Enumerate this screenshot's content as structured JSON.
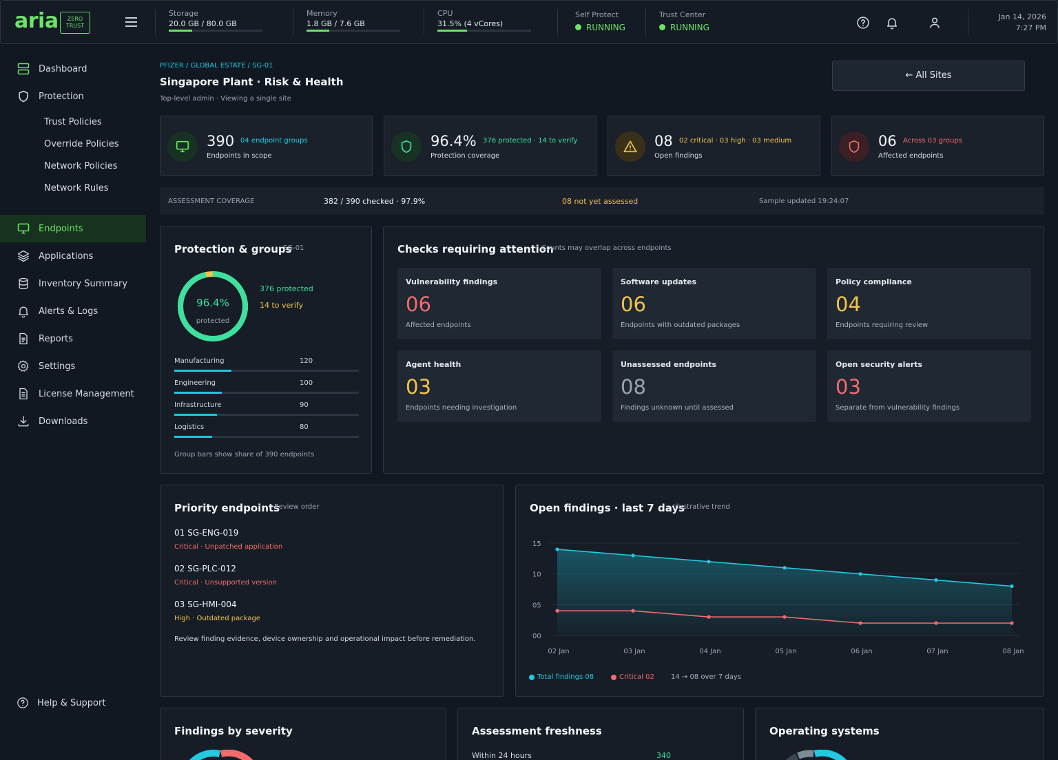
{
  "header": {
    "logo": "aria",
    "badge_line1": "ZERO",
    "badge_line2": "TRUST",
    "metrics": [
      {
        "label": "Storage",
        "value": "20.0 GB / 80.0 GB",
        "fraction": 0.25
      },
      {
        "label": "Memory",
        "value": "1.8 GB / 7.6 GB",
        "fraction": 0.24
      },
      {
        "label": "CPU",
        "value": "31.5% (4 vCores)",
        "fraction": 0.315
      }
    ],
    "services": [
      {
        "label": "Self Protect",
        "status": "RUNNING"
      },
      {
        "label": "Trust Center",
        "status": "RUNNING"
      }
    ],
    "date": "Jan 14, 2026",
    "time": "7:27 PM"
  },
  "sidebar": {
    "items": [
      {
        "label": "Dashboard",
        "icon": "server-icon"
      },
      {
        "label": "Protection",
        "icon": "shield-icon"
      },
      {
        "label": "Endpoints",
        "icon": "monitor-icon",
        "active": true
      },
      {
        "label": "Applications",
        "icon": "layers-icon"
      },
      {
        "label": "Inventory Summary",
        "icon": "database-icon"
      },
      {
        "label": "Alerts & Logs",
        "icon": "bell-icon"
      },
      {
        "label": "Reports",
        "icon": "document-icon"
      },
      {
        "label": "Settings",
        "icon": "gear-icon"
      },
      {
        "label": "License Management",
        "icon": "license-icon"
      },
      {
        "label": "Downloads",
        "icon": "download-icon"
      }
    ],
    "protection_sub": [
      "Trust Policies",
      "Override Policies",
      "Network Policies",
      "Network Rules"
    ],
    "help": "Help & Support"
  },
  "page": {
    "breadcrumb": "PFIZER / GLOBAL ESTATE / SG-01",
    "title": "Singapore Plant · Risk & Health",
    "subtitle": "Top-level admin · Viewing a single site",
    "all_sites": "← All Sites"
  },
  "kpis": [
    {
      "value": "390",
      "tag": "04 endpoint groups",
      "label": "Endpoints in scope",
      "color": "#22c9e0"
    },
    {
      "value": "96.4%",
      "tag": "376 protected · 14 to verify",
      "label": "Protection coverage",
      "color": "#3ee0a0"
    },
    {
      "value": "08",
      "tag": "02 critical · 03 high · 03 medium",
      "label": "Open findings",
      "color": "#f3c34a"
    },
    {
      "value": "06",
      "tag": "Across 03 groups",
      "label": "Affected endpoints",
      "color": "#f46b6b"
    }
  ],
  "coverage": {
    "label": "ASSESSMENT COVERAGE",
    "checked": "382 / 390 checked · 97.9%",
    "pending": "08 not yet assessed",
    "updated": "Sample updated 19:24:07"
  },
  "protection": {
    "title": "Protection & groups",
    "site": "SG-01",
    "percent": "96.4%",
    "percent_value": 96.4,
    "caption": "protected",
    "protected": "376 protected",
    "verify": "14 to verify",
    "groups": [
      {
        "name": "Manufacturing",
        "value": "120",
        "share": 0.308
      },
      {
        "name": "Engineering",
        "value": "100",
        "share": 0.256
      },
      {
        "name": "Infrastructure",
        "value": "90",
        "share": 0.231
      },
      {
        "name": "Logistics",
        "value": "80",
        "share": 0.205
      }
    ],
    "footnote": "Group bars show share of 390 endpoints"
  },
  "checks": {
    "title": "Checks requiring attention",
    "subtitle": "Counts may overlap across endpoints",
    "items": [
      {
        "label": "Vulnerability findings",
        "value": "06",
        "sub": "Affected endpoints",
        "color": "#f46b6b"
      },
      {
        "label": "Software updates",
        "value": "06",
        "sub": "Endpoints with outdated packages",
        "color": "#f3c34a"
      },
      {
        "label": "Policy compliance",
        "value": "04",
        "sub": "Endpoints requiring review",
        "color": "#f3c34a"
      },
      {
        "label": "Agent health",
        "value": "03",
        "sub": "Endpoints needing investigation",
        "color": "#f3c34a"
      },
      {
        "label": "Unassessed endpoints",
        "value": "08",
        "sub": "Findings unknown until assessed",
        "color": "#9aa5b1"
      },
      {
        "label": "Open security alerts",
        "value": "03",
        "sub": "Separate from vulnerability findings",
        "color": "#f46b6b"
      }
    ]
  },
  "priority": {
    "title": "Priority endpoints",
    "subtitle": "Review order",
    "items": [
      {
        "name": "01  SG-ENG-019",
        "detail": "Critical · Unpatched application",
        "color": "#f46b6b"
      },
      {
        "name": "02  SG-PLC-012",
        "detail": "Critical · Unsupported version",
        "color": "#f46b6b"
      },
      {
        "name": "03  SG-HMI-004",
        "detail": "High · Outdated package",
        "color": "#f3c34a"
      }
    ],
    "note": "Review finding evidence, device ownership and operational impact before remediation."
  },
  "trend": {
    "title": "Open findings · last 7 days",
    "subtitle": "Illustrative trend",
    "legend_total": "Total findings 08",
    "legend_critical": "Critical 02",
    "legend_note": "14 → 08 over 7 days"
  },
  "chart_data": {
    "type": "area",
    "x": [
      "02 Jan",
      "03 Jan",
      "04 Jan",
      "05 Jan",
      "06 Jan",
      "07 Jan",
      "08 Jan"
    ],
    "y_ticks": [
      "00",
      "05",
      "10",
      "15"
    ],
    "ylim": [
      0,
      15
    ],
    "series": [
      {
        "name": "Total findings",
        "values": [
          14,
          13,
          12,
          11,
          10,
          9,
          8
        ],
        "color": "#22c9e0"
      },
      {
        "name": "Critical",
        "values": [
          4,
          4,
          3,
          3,
          2,
          2,
          2
        ],
        "color": "#f46b6b"
      }
    ],
    "grid": true
  },
  "bottom": {
    "severity_title": "Findings by severity",
    "freshness_title": "Assessment freshness",
    "freshness_row_label": "Within 24 hours",
    "freshness_row_value": "340",
    "os_title": "Operating systems"
  }
}
